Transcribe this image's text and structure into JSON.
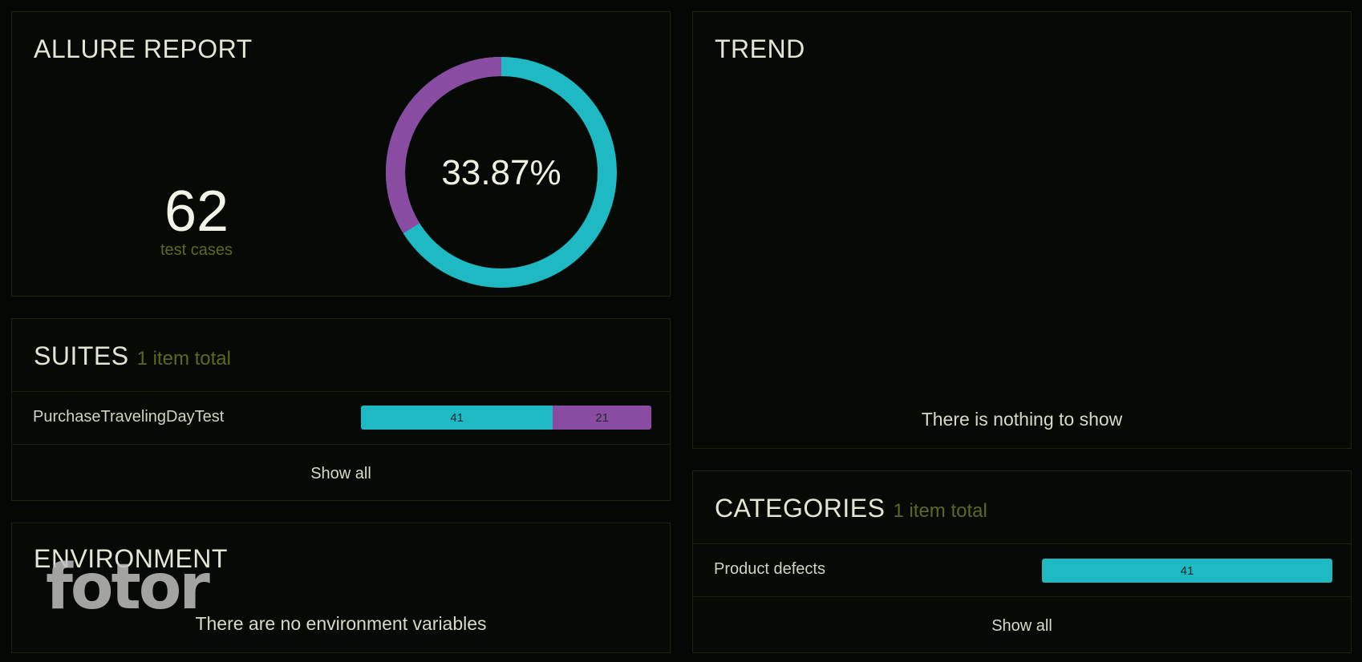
{
  "summary": {
    "title": "ALLURE REPORT",
    "test_count": "62",
    "test_count_label": "test cases",
    "percent_text": "33.87%",
    "donut": {
      "percent": 33.87,
      "colors": {
        "primary": "#1fb9c4",
        "secondary": "#8a4ba2"
      }
    }
  },
  "trend": {
    "title": "TREND",
    "empty_text": "There is nothing to show"
  },
  "suites": {
    "title": "SUITES",
    "count_text": "1 item total",
    "rows": [
      {
        "name": "PurchaseTravelingDayTest",
        "segments": [
          {
            "value": 41,
            "label": "41",
            "color": "#1fb9c4"
          },
          {
            "value": 21,
            "label": "21",
            "color": "#8a4ba2"
          }
        ]
      }
    ],
    "show_all": "Show all"
  },
  "categories": {
    "title": "CATEGORIES",
    "count_text": "1 item total",
    "rows": [
      {
        "name": "Product defects",
        "segments": [
          {
            "value": 41,
            "label": "41",
            "color": "#1fb9c4"
          }
        ]
      }
    ],
    "show_all": "Show all"
  },
  "environment": {
    "title": "ENVIRONMENT",
    "empty_text": "There are no environment variables"
  },
  "watermark": "fotor"
}
